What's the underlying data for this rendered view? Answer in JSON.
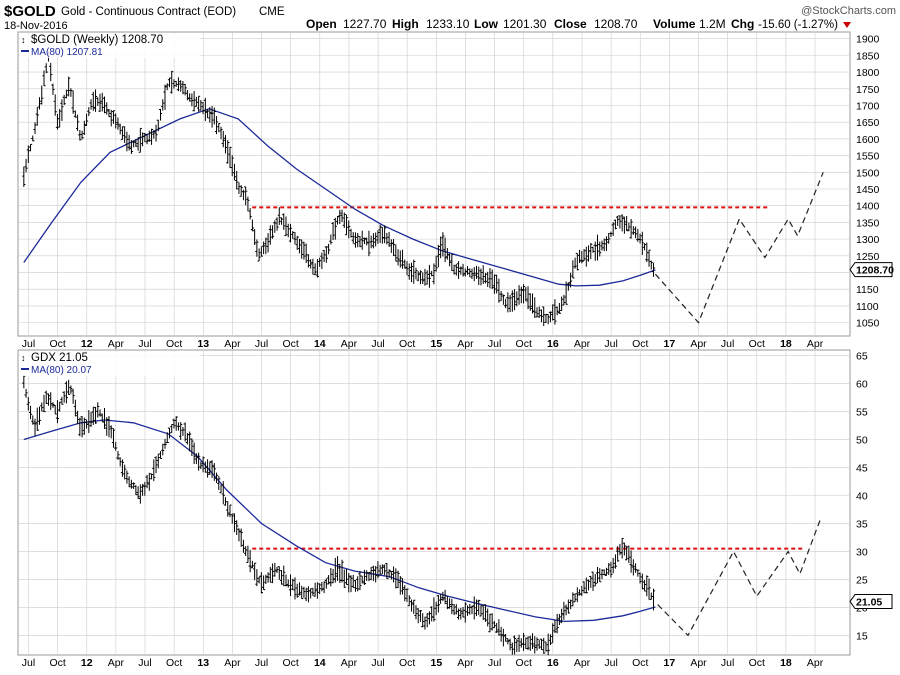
{
  "header": {
    "symbol": "$GOLD",
    "description": "Gold - Continuous Contract (EOD)",
    "exchange": "CME",
    "date": "18-Nov-2016",
    "open_label": "Open",
    "open": "1227.70",
    "high_label": "High",
    "high": "1233.10",
    "low_label": "Low",
    "low": "1201.30",
    "close_label": "Close",
    "close": "1208.70",
    "volume_label": "Volume",
    "volume": "1.2M",
    "chg_label": "Chg",
    "chg": "-15.60 (-1.27%)",
    "watermark": "@StockCharts.com"
  },
  "colors": {
    "price": "#000000",
    "ma": "#1c2a99",
    "resistance": "#dd1111",
    "projection": "#222222",
    "grid": "#cccccc",
    "frame": "#9a9a9a",
    "chg_arrow": "#cc0000"
  },
  "chart_data": [
    {
      "type": "ohlc",
      "title": "$GOLD (Weekly) 1208.70",
      "series": [
        {
          "name": "$GOLD (Weekly)",
          "last": "1208.70"
        },
        {
          "name": "MA(80)",
          "label": "MA(80) 1207.81",
          "last": "1207.81"
        }
      ],
      "last_value_label": "1208.70",
      "ylim": [
        1010,
        1920
      ],
      "yticks": [
        1050,
        1100,
        1150,
        1200,
        1250,
        1300,
        1350,
        1400,
        1450,
        1500,
        1550,
        1600,
        1650,
        1700,
        1750,
        1800,
        1850,
        1900
      ],
      "x_tick_labels": [
        "Jul",
        "Oct",
        "12",
        "Apr",
        "Jul",
        "Oct",
        "13",
        "Apr",
        "Jul",
        "Oct",
        "14",
        "Apr",
        "Jul",
        "Oct",
        "15",
        "Apr",
        "Jul",
        "Oct",
        "16",
        "Apr",
        "Jul",
        "Oct",
        "17",
        "Apr",
        "Jul",
        "Oct",
        "18",
        "Apr"
      ],
      "price_path": [
        [
          2011.46,
          1490
        ],
        [
          2011.55,
          1620
        ],
        [
          2011.67,
          1850
        ],
        [
          2011.75,
          1650
        ],
        [
          2011.85,
          1760
        ],
        [
          2011.95,
          1600
        ],
        [
          2012.05,
          1720
        ],
        [
          2012.17,
          1690
        ],
        [
          2012.25,
          1650
        ],
        [
          2012.38,
          1580
        ],
        [
          2012.5,
          1600
        ],
        [
          2012.6,
          1620
        ],
        [
          2012.7,
          1770
        ],
        [
          2012.8,
          1760
        ],
        [
          2012.9,
          1720
        ],
        [
          2013.0,
          1690
        ],
        [
          2013.1,
          1660
        ],
        [
          2013.2,
          1580
        ],
        [
          2013.3,
          1460
        ],
        [
          2013.38,
          1410
        ],
        [
          2013.47,
          1250
        ],
        [
          2013.55,
          1290
        ],
        [
          2013.65,
          1360
        ],
        [
          2013.75,
          1320
        ],
        [
          2013.85,
          1270
        ],
        [
          2013.95,
          1210
        ],
        [
          2014.05,
          1250
        ],
        [
          2014.18,
          1380
        ],
        [
          2014.3,
          1300
        ],
        [
          2014.42,
          1290
        ],
        [
          2014.55,
          1320
        ],
        [
          2014.65,
          1260
        ],
        [
          2014.75,
          1215
        ],
        [
          2014.88,
          1180
        ],
        [
          2014.98,
          1200
        ],
        [
          2015.05,
          1290
        ],
        [
          2015.15,
          1210
        ],
        [
          2015.3,
          1200
        ],
        [
          2015.4,
          1190
        ],
        [
          2015.5,
          1170
        ],
        [
          2015.6,
          1100
        ],
        [
          2015.75,
          1140
        ],
        [
          2015.85,
          1090
        ],
        [
          2015.95,
          1060
        ],
        [
          2016.05,
          1090
        ],
        [
          2016.1,
          1120
        ],
        [
          2016.2,
          1240
        ],
        [
          2016.35,
          1270
        ],
        [
          2016.45,
          1280
        ],
        [
          2016.55,
          1350
        ],
        [
          2016.65,
          1340
        ],
        [
          2016.75,
          1300
        ],
        [
          2016.8,
          1270
        ],
        [
          2016.85,
          1220
        ],
        [
          2016.88,
          1208.7
        ]
      ],
      "ma_path": [
        [
          2011.46,
          1230
        ],
        [
          2011.7,
          1350
        ],
        [
          2011.95,
          1470
        ],
        [
          2012.2,
          1560
        ],
        [
          2012.5,
          1610
        ],
        [
          2012.8,
          1660
        ],
        [
          2013.05,
          1690
        ],
        [
          2013.3,
          1660
        ],
        [
          2013.55,
          1580
        ],
        [
          2013.8,
          1510
        ],
        [
          2014.05,
          1450
        ],
        [
          2014.3,
          1390
        ],
        [
          2014.55,
          1340
        ],
        [
          2014.8,
          1300
        ],
        [
          2015.05,
          1265
        ],
        [
          2015.3,
          1240
        ],
        [
          2015.55,
          1215
        ],
        [
          2015.8,
          1190
        ],
        [
          2016.05,
          1165
        ],
        [
          2016.2,
          1160
        ],
        [
          2016.4,
          1162
        ],
        [
          2016.6,
          1175
        ],
        [
          2016.75,
          1192
        ],
        [
          2016.88,
          1207.81
        ]
      ],
      "resistance": {
        "y": 1395,
        "x_range": [
          2013.42,
          2017.86
        ]
      },
      "projection_path": [
        [
          2016.88,
          1195
        ],
        [
          2017.25,
          1050
        ],
        [
          2017.6,
          1360
        ],
        [
          2017.82,
          1245
        ],
        [
          2018.02,
          1360
        ],
        [
          2018.1,
          1310
        ],
        [
          2018.32,
          1500
        ]
      ]
    },
    {
      "type": "ohlc",
      "title": "GDX 21.05",
      "series": [
        {
          "name": "GDX",
          "last": "21.05"
        },
        {
          "name": "MA(80)",
          "label": "MA(80) 20.07",
          "last": "20.07"
        }
      ],
      "last_value_label": "21.05",
      "ylim": [
        11.5,
        66
      ],
      "yticks": [
        15,
        20,
        25,
        30,
        35,
        40,
        45,
        50,
        55,
        60,
        65
      ],
      "x_tick_labels": [
        "Jul",
        "Oct",
        "12",
        "Apr",
        "Jul",
        "Oct",
        "13",
        "Apr",
        "Jul",
        "Oct",
        "14",
        "Apr",
        "Jul",
        "Oct",
        "15",
        "Apr",
        "Jul",
        "Oct",
        "16",
        "Apr",
        "Jul",
        "Oct",
        "17",
        "Apr",
        "Jul",
        "Oct",
        "18",
        "Apr"
      ],
      "price_path": [
        [
          2011.46,
          60
        ],
        [
          2011.55,
          52
        ],
        [
          2011.65,
          58
        ],
        [
          2011.75,
          55
        ],
        [
          2011.85,
          60
        ],
        [
          2011.95,
          52
        ],
        [
          2012.1,
          55
        ],
        [
          2012.2,
          52
        ],
        [
          2012.3,
          45
        ],
        [
          2012.45,
          40
        ],
        [
          2012.55,
          43
        ],
        [
          2012.65,
          48
        ],
        [
          2012.75,
          53
        ],
        [
          2012.85,
          51
        ],
        [
          2012.95,
          46
        ],
        [
          2013.1,
          44
        ],
        [
          2013.25,
          36
        ],
        [
          2013.37,
          30
        ],
        [
          2013.5,
          24
        ],
        [
          2013.62,
          27
        ],
        [
          2013.75,
          24
        ],
        [
          2013.9,
          22
        ],
        [
          2014.05,
          24
        ],
        [
          2014.15,
          27
        ],
        [
          2014.3,
          24
        ],
        [
          2014.45,
          26
        ],
        [
          2014.55,
          27
        ],
        [
          2014.7,
          24
        ],
        [
          2014.8,
          20
        ],
        [
          2014.9,
          17
        ],
        [
          2015.05,
          22
        ],
        [
          2015.2,
          19
        ],
        [
          2015.35,
          20
        ],
        [
          2015.5,
          17
        ],
        [
          2015.65,
          13
        ],
        [
          2015.8,
          14
        ],
        [
          2015.95,
          13
        ],
        [
          2016.05,
          18
        ],
        [
          2016.2,
          22
        ],
        [
          2016.35,
          25
        ],
        [
          2016.5,
          27
        ],
        [
          2016.6,
          31
        ],
        [
          2016.68,
          28
        ],
        [
          2016.78,
          24
        ],
        [
          2016.88,
          21.05
        ]
      ],
      "ma_path": [
        [
          2011.46,
          50
        ],
        [
          2011.7,
          51.5
        ],
        [
          2011.95,
          53
        ],
        [
          2012.15,
          53.5
        ],
        [
          2012.4,
          53
        ],
        [
          2012.7,
          51
        ],
        [
          2012.95,
          47
        ],
        [
          2013.2,
          41
        ],
        [
          2013.5,
          35
        ],
        [
          2013.8,
          31
        ],
        [
          2014.05,
          28
        ],
        [
          2014.3,
          26.5
        ],
        [
          2014.6,
          25.5
        ],
        [
          2014.85,
          23.5
        ],
        [
          2015.1,
          22
        ],
        [
          2015.35,
          20.7
        ],
        [
          2015.6,
          19.5
        ],
        [
          2015.85,
          18.3
        ],
        [
          2016.1,
          17.5
        ],
        [
          2016.35,
          17.7
        ],
        [
          2016.6,
          18.5
        ],
        [
          2016.75,
          19.3
        ],
        [
          2016.88,
          20.07
        ]
      ],
      "resistance": {
        "y": 30.5,
        "x_range": [
          2013.42,
          2018.16
        ]
      },
      "projection_path": [
        [
          2016.9,
          20.5
        ],
        [
          2017.16,
          15
        ],
        [
          2017.55,
          30
        ],
        [
          2017.75,
          22
        ],
        [
          2018.02,
          30
        ],
        [
          2018.12,
          26
        ],
        [
          2018.3,
          36
        ]
      ]
    }
  ]
}
